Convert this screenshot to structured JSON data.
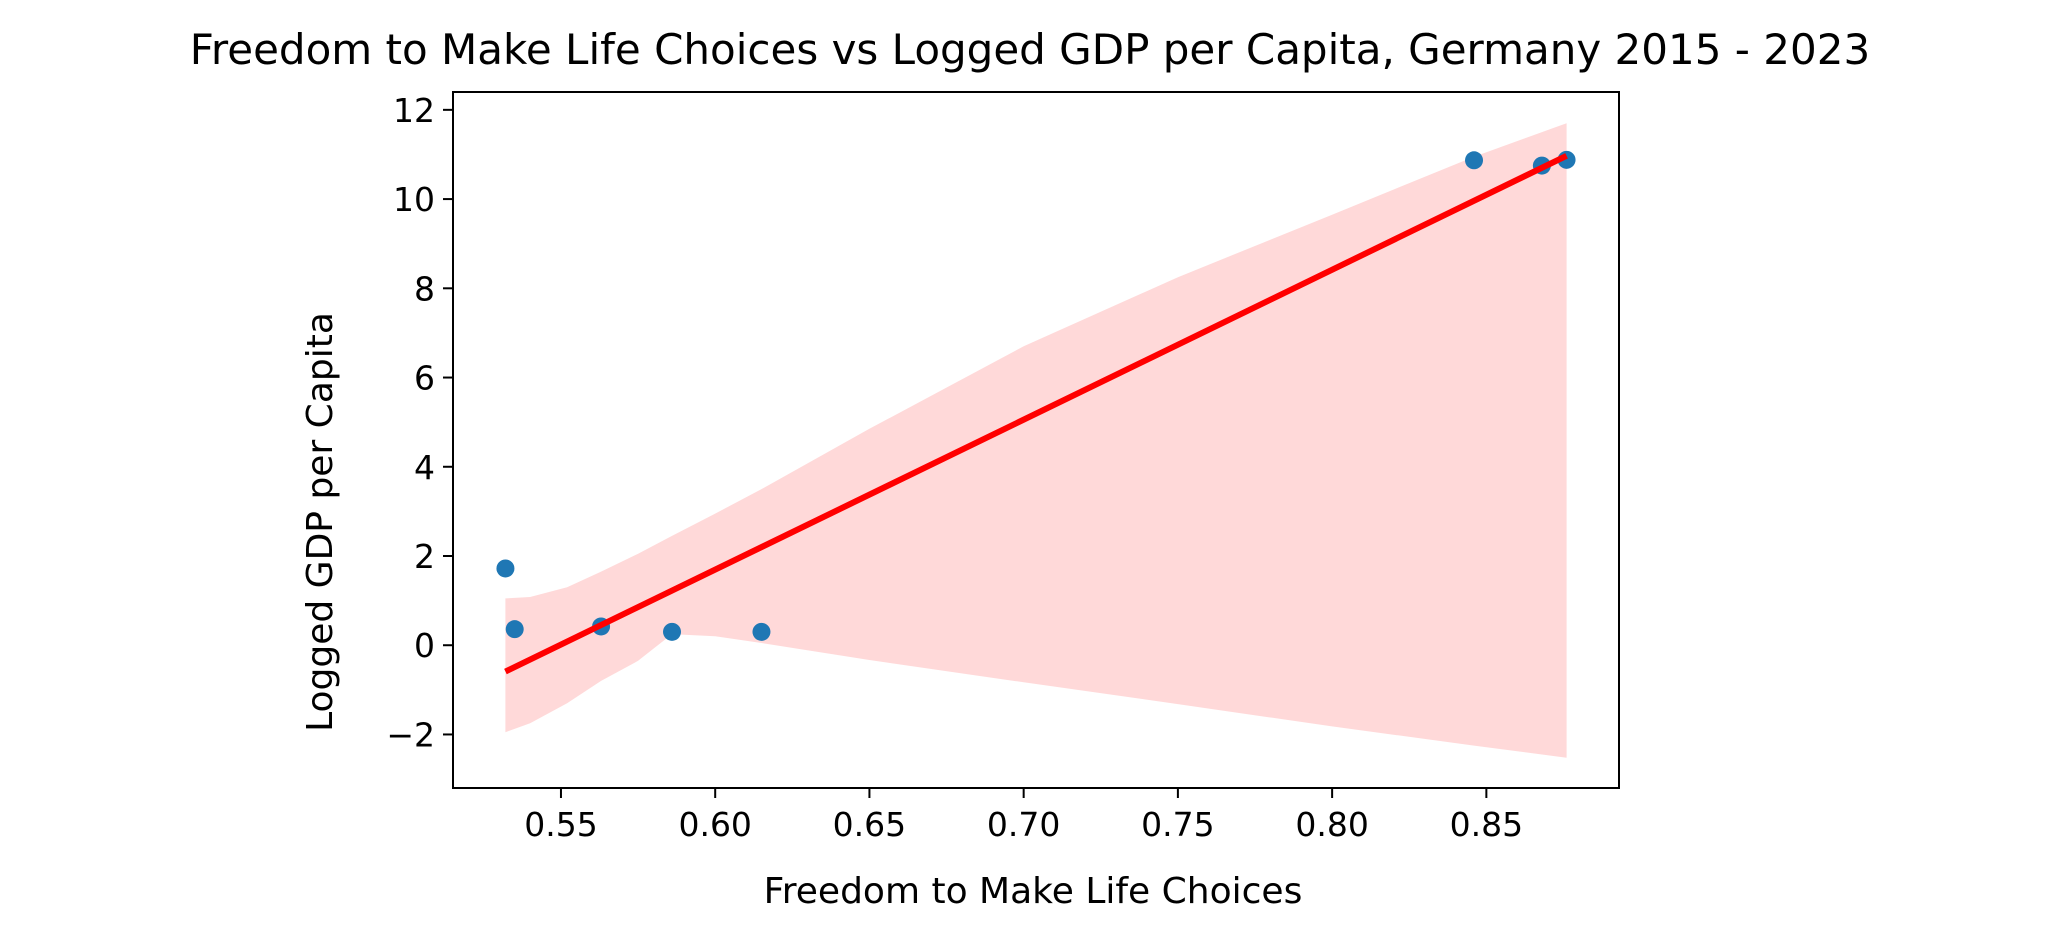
{
  "chart_data": {
    "type": "scatter",
    "title": "Freedom to Make Life Choices vs Logged GDP per Capita, Germany 2015 - 2023",
    "xlabel": "Freedom to Make Life Choices",
    "ylabel": "Logged GDP per Capita",
    "xlim": [
      0.515,
      0.893
    ],
    "ylim": [
      -3.2,
      12.4
    ],
    "x_ticks": [
      0.55,
      0.6,
      0.65,
      0.7,
      0.75,
      0.8,
      0.85
    ],
    "x_tick_labels": [
      "0.55",
      "0.60",
      "0.65",
      "0.70",
      "0.75",
      "0.80",
      "0.85"
    ],
    "y_ticks": [
      -2,
      0,
      2,
      4,
      6,
      8,
      10,
      12
    ],
    "y_tick_labels": [
      "−2",
      "0",
      "2",
      "4",
      "6",
      "8",
      "10",
      "12"
    ],
    "grid": false,
    "points": [
      {
        "x": 0.532,
        "y": 1.72
      },
      {
        "x": 0.535,
        "y": 0.36
      },
      {
        "x": 0.563,
        "y": 0.42
      },
      {
        "x": 0.586,
        "y": 0.3
      },
      {
        "x": 0.615,
        "y": 0.3
      },
      {
        "x": 0.846,
        "y": 10.87
      },
      {
        "x": 0.868,
        "y": 10.75
      },
      {
        "x": 0.876,
        "y": 10.88
      }
    ],
    "regression_line": {
      "x": [
        0.532,
        0.876
      ],
      "y": [
        -0.59,
        10.97
      ]
    },
    "confidence_band": [
      {
        "x": 0.532,
        "low": -1.95,
        "high": 1.05
      },
      {
        "x": 0.54,
        "low": -1.75,
        "high": 1.08
      },
      {
        "x": 0.552,
        "low": -1.3,
        "high": 1.3
      },
      {
        "x": 0.563,
        "low": -0.8,
        "high": 1.65
      },
      {
        "x": 0.575,
        "low": -0.35,
        "high": 2.05
      },
      {
        "x": 0.586,
        "low": 0.25,
        "high": 2.45
      },
      {
        "x": 0.6,
        "low": 0.2,
        "high": 2.95
      },
      {
        "x": 0.615,
        "low": 0.05,
        "high": 3.5
      },
      {
        "x": 0.65,
        "low": -0.33,
        "high": 4.85
      },
      {
        "x": 0.7,
        "low": -0.83,
        "high": 6.7
      },
      {
        "x": 0.75,
        "low": -1.32,
        "high": 8.25
      },
      {
        "x": 0.8,
        "low": -1.82,
        "high": 9.65
      },
      {
        "x": 0.846,
        "low": -2.25,
        "high": 10.95
      },
      {
        "x": 0.876,
        "low": -2.52,
        "high": 11.7
      }
    ],
    "colors": {
      "points": "#1f77b4",
      "line": "#ff0000",
      "band": "#ffcccc"
    }
  }
}
